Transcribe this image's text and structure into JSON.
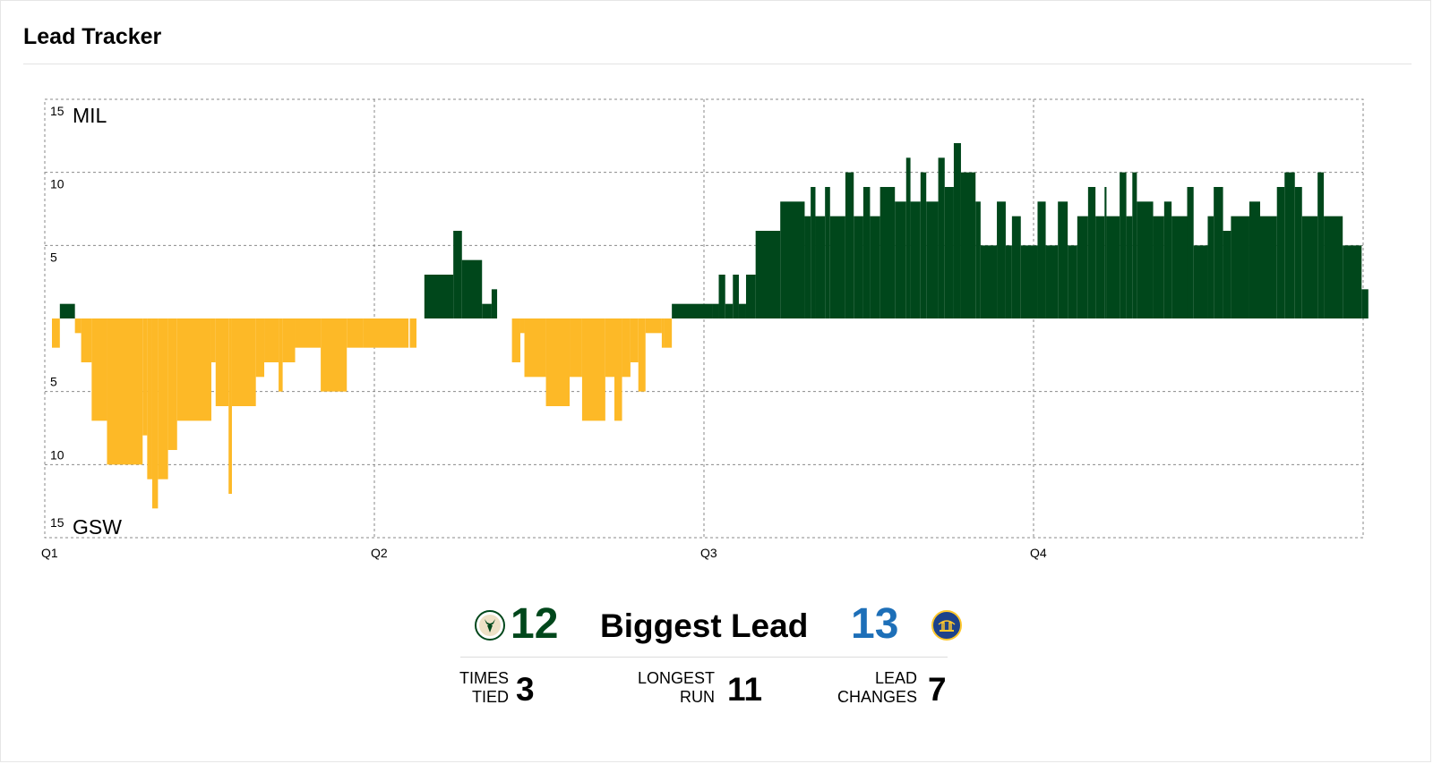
{
  "card": {
    "title": "Lead Tracker"
  },
  "chart_data": {
    "type": "bar",
    "title": "",
    "xlabel": "",
    "ylabel": "",
    "x_ticks": [
      "Q1",
      "Q2",
      "Q3",
      "Q4"
    ],
    "x_range_minutes": [
      0,
      48
    ],
    "y_ticks_top": [
      "15",
      "10",
      "5"
    ],
    "y_ticks_bottom": [
      "5",
      "10",
      "15"
    ],
    "ylim": [
      -15,
      15
    ],
    "grid": true,
    "team_labels": {
      "top": "MIL",
      "bottom": "GSW"
    },
    "colors": {
      "MIL": "#00471b",
      "GSW": "#fdb927"
    },
    "series": [
      {
        "name": "MIL",
        "note_values": "point differential MIL minus GSW, positive = MIL lead",
        "values": [
          [
            0.0,
            -2
          ],
          [
            0.33,
            1
          ],
          [
            0.96,
            -1
          ],
          [
            1.22,
            -3
          ],
          [
            1.66,
            -7
          ],
          [
            2.3,
            -10
          ],
          [
            3.79,
            -8
          ],
          [
            3.98,
            -11
          ],
          [
            4.19,
            -13
          ],
          [
            4.43,
            -11
          ],
          [
            4.85,
            -9
          ],
          [
            5.23,
            -7
          ],
          [
            6.66,
            -3
          ],
          [
            6.84,
            -6
          ],
          [
            7.38,
            -12
          ],
          [
            7.52,
            -6
          ],
          [
            8.52,
            -4
          ],
          [
            8.87,
            -3
          ],
          [
            9.47,
            -5
          ],
          [
            9.64,
            -3
          ],
          [
            10.16,
            -2
          ],
          [
            11.23,
            -5
          ],
          [
            12.32,
            -2
          ],
          [
            13.0,
            -2
          ],
          [
            14.9,
            0
          ],
          [
            14.95,
            -2
          ],
          [
            15.23,
            0
          ],
          [
            15.56,
            3
          ],
          [
            16.77,
            6
          ],
          [
            17.13,
            4
          ],
          [
            17.97,
            1
          ],
          [
            18.37,
            2
          ],
          [
            18.6,
            0
          ],
          [
            18.92,
            0
          ],
          [
            19.22,
            -3
          ],
          [
            19.57,
            -1
          ],
          [
            19.74,
            -4
          ],
          [
            20.64,
            -6
          ],
          [
            21.63,
            -4
          ],
          [
            22.15,
            -7
          ],
          [
            23.12,
            -4
          ],
          [
            23.5,
            -7
          ],
          [
            23.82,
            -4
          ],
          [
            24.17,
            -3
          ],
          [
            24.5,
            -5
          ],
          [
            24.8,
            -1
          ],
          [
            25.48,
            -2
          ],
          [
            25.56,
            -2
          ],
          [
            25.9,
            1
          ],
          [
            27.58,
            1
          ],
          [
            27.86,
            3
          ],
          [
            28.13,
            1
          ],
          [
            28.45,
            3
          ],
          [
            28.7,
            1
          ],
          [
            29.0,
            3
          ],
          [
            29.4,
            6
          ],
          [
            30.43,
            8
          ],
          [
            31.45,
            7
          ],
          [
            31.7,
            9
          ],
          [
            31.9,
            7
          ],
          [
            32.3,
            9
          ],
          [
            32.51,
            7
          ],
          [
            33.15,
            10
          ],
          [
            33.5,
            7
          ],
          [
            33.9,
            9
          ],
          [
            34.18,
            7
          ],
          [
            34.6,
            9
          ],
          [
            35.22,
            8
          ],
          [
            35.69,
            11
          ],
          [
            35.87,
            8
          ],
          [
            36.29,
            10
          ],
          [
            36.53,
            8
          ],
          [
            37.03,
            11
          ],
          [
            37.3,
            9
          ],
          [
            37.68,
            12
          ],
          [
            37.98,
            10
          ],
          [
            38.59,
            8
          ],
          [
            38.8,
            5
          ],
          [
            39.48,
            8
          ],
          [
            39.85,
            5
          ],
          [
            40.11,
            7
          ],
          [
            40.48,
            5
          ],
          [
            41.18,
            8
          ],
          [
            41.52,
            5
          ],
          [
            42.03,
            8
          ],
          [
            42.44,
            5
          ],
          [
            42.84,
            7
          ],
          [
            43.29,
            9
          ],
          [
            43.6,
            7
          ],
          [
            43.98,
            9
          ],
          [
            44.06,
            7
          ],
          [
            44.61,
            10
          ],
          [
            44.89,
            7
          ],
          [
            45.14,
            10
          ],
          [
            45.33,
            8
          ],
          [
            46.01,
            7
          ],
          [
            46.47,
            8
          ],
          [
            46.78,
            7
          ],
          [
            47.43,
            9
          ],
          [
            47.7,
            5
          ],
          [
            48.29,
            7
          ],
          [
            48.54,
            9
          ],
          [
            48.93,
            6
          ],
          [
            49.26,
            7
          ],
          [
            50.03,
            8
          ],
          [
            50.48,
            7
          ],
          [
            51.18,
            9
          ],
          [
            51.5,
            10
          ],
          [
            51.93,
            9
          ],
          [
            52.23,
            7
          ],
          [
            52.88,
            10
          ],
          [
            53.14,
            7
          ],
          [
            53.93,
            5
          ],
          [
            54.72,
            2
          ],
          [
            55.0,
            2
          ]
        ]
      }
    ],
    "summary": {
      "label": "Biggest Lead",
      "mil_value": "12",
      "gsw_value": "13",
      "times_tied_label_1": "TIMES",
      "times_tied_label_2": "TIED",
      "times_tied": "3",
      "longest_run_label_1": "LONGEST",
      "longest_run_label_2": "RUN",
      "longest_run": "11",
      "lead_changes_label_1": "LEAD",
      "lead_changes_label_2": "CHANGES",
      "lead_changes": "7"
    }
  },
  "icons": {
    "mil_logo": "bucks-logo-icon",
    "gsw_logo": "warriors-logo-icon"
  }
}
